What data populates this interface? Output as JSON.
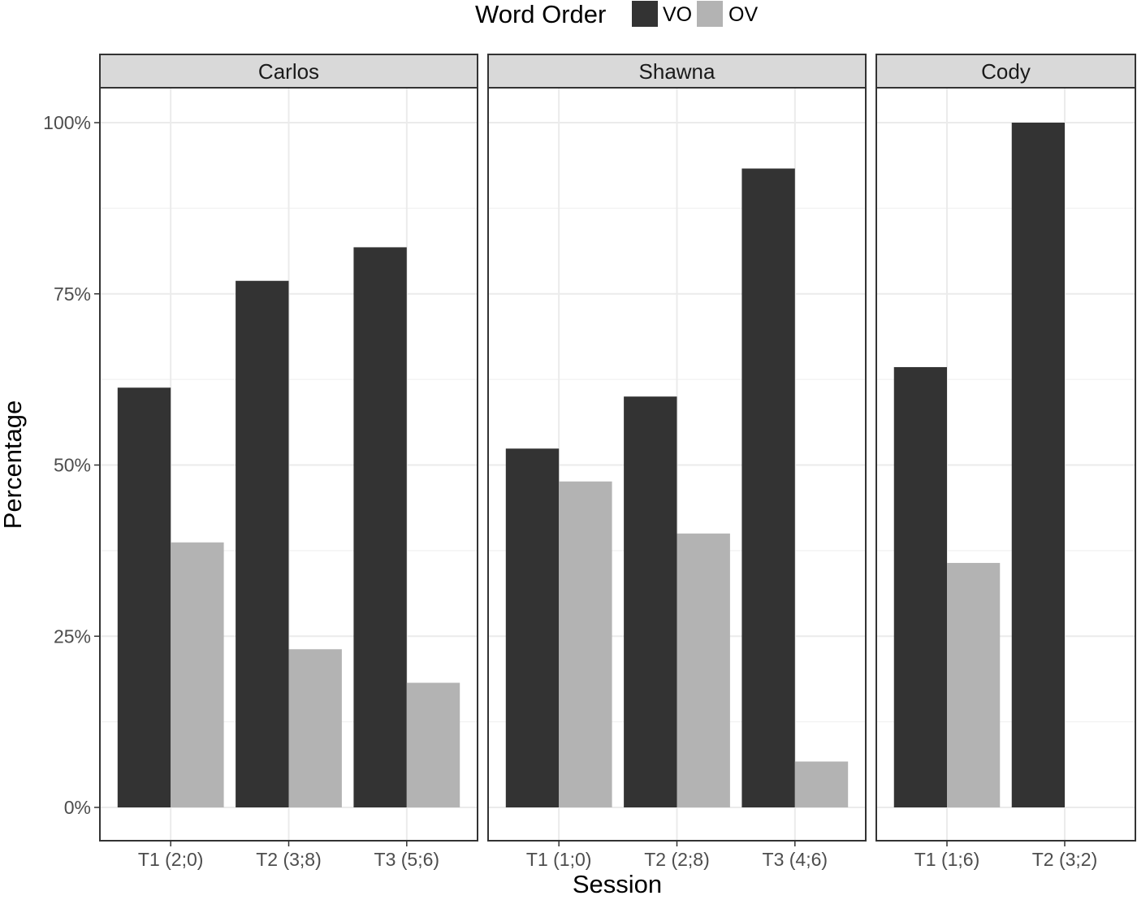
{
  "chart_data": {
    "type": "bar",
    "xlabel": "Session",
    "ylabel": "Percentage",
    "ylim": [
      0,
      1.07
    ],
    "y_ticks": [
      0,
      0.25,
      0.5,
      0.75,
      1.0
    ],
    "y_tick_labels": [
      "0%",
      "25%",
      "50%",
      "75%",
      "100%"
    ],
    "grid": true,
    "legend": {
      "title": "Word Order",
      "placement": "top",
      "entries": [
        {
          "name": "VO",
          "color": "#333333"
        },
        {
          "name": "OV",
          "color": "#b3b3b3"
        }
      ]
    },
    "facets": [
      {
        "name": "Carlos",
        "categories": [
          "T1 (2;0)",
          "T2 (3;8)",
          "T3 (5;6)"
        ],
        "series": [
          {
            "name": "VO",
            "values": [
              0.613,
              0.769,
              0.818
            ]
          },
          {
            "name": "OV",
            "values": [
              0.387,
              0.231,
              0.182
            ]
          }
        ]
      },
      {
        "name": "Shawna",
        "categories": [
          "T1 (1;0)",
          "T2 (2;8)",
          "T3 (4;6)"
        ],
        "series": [
          {
            "name": "VO",
            "values": [
              0.524,
              0.6,
              0.933
            ]
          },
          {
            "name": "OV",
            "values": [
              0.476,
              0.4,
              0.067
            ]
          }
        ]
      },
      {
        "name": "Cody",
        "categories": [
          "T1 (1;6)",
          "T2 (3;2)"
        ],
        "series": [
          {
            "name": "VO",
            "values": [
              0.643,
              1.0
            ]
          },
          {
            "name": "OV",
            "values": [
              0.357,
              0.0
            ]
          }
        ]
      }
    ]
  },
  "colors": {
    "panel_border": "#333333",
    "strip_fill": "#d9d9d9",
    "grid_major": "#ebebeb",
    "grid_minor": "#f2f2f2"
  }
}
